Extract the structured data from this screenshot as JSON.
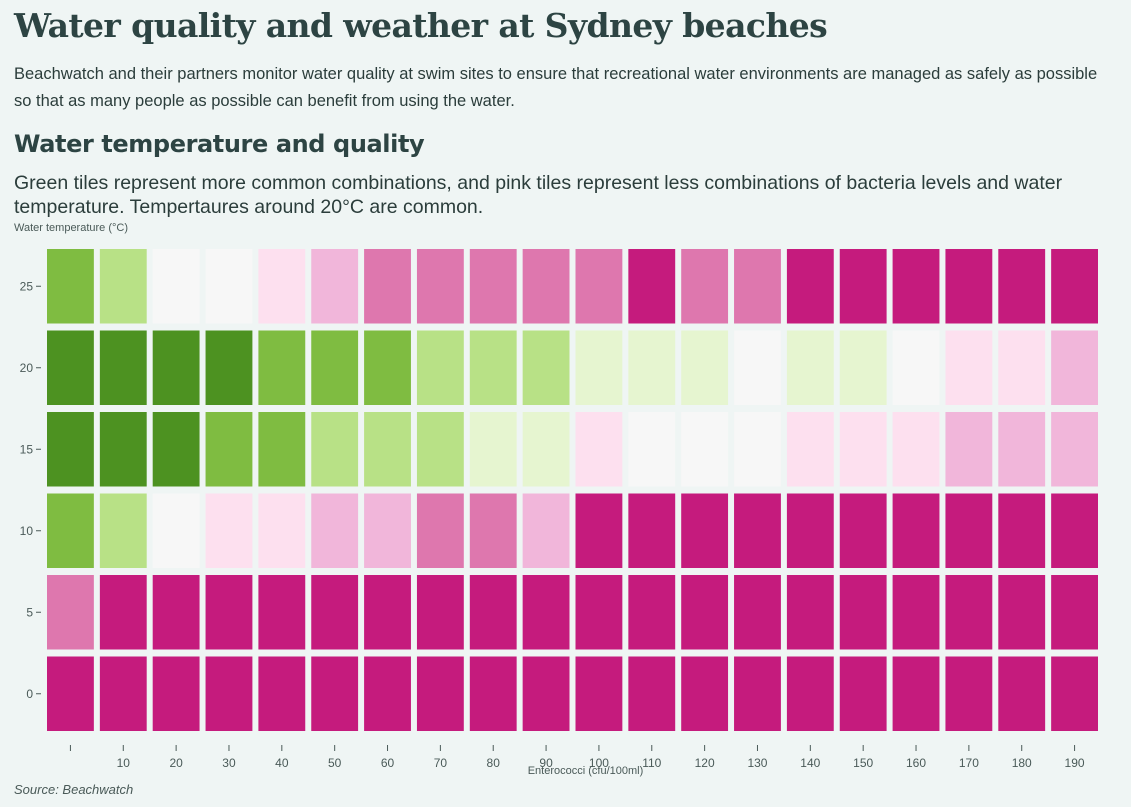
{
  "title": "Water quality and weather at Sydney beaches",
  "intro": "Beachwatch and their partners monitor water quality at swim sites to ensure that recreational water environments are managed as safely as possible so that as many people as possible can benefit from using the water.",
  "section_title": "Water temperature and quality",
  "subtitle": "Green tiles represent more common combinations, and pink tiles represent less combinations of bacteria levels and water temperature. Tempertaures around 20°C are common.",
  "source": "Source: Beachwatch",
  "colors": {
    "0": "#4d9221",
    "1": "#7fbc41",
    "2": "#b8e186",
    "3": "#e6f5d0",
    "4": "#f7f7f7",
    "5": "#fde0ef",
    "6": "#f1b6da",
    "7": "#de77ae",
    "8": "#c51b7d"
  },
  "chart_data": {
    "type": "heatmap",
    "xlabel": "Enterococci (cfu/100ml)",
    "ylabel": "Water temperature (°C)",
    "x": [
      0,
      10,
      20,
      30,
      40,
      50,
      60,
      70,
      80,
      90,
      100,
      110,
      120,
      130,
      140,
      150,
      160,
      170,
      180,
      190
    ],
    "x_tick_labels": [
      "",
      "10",
      "20",
      "30",
      "40",
      "50",
      "60",
      "70",
      "80",
      "90",
      "100",
      "110",
      "120",
      "130",
      "140",
      "150",
      "160",
      "170",
      "180",
      "190"
    ],
    "y": [
      25,
      20,
      15,
      10,
      5,
      0
    ],
    "y_tick_labels": [
      "25",
      "20",
      "15",
      "10",
      "5",
      "0"
    ],
    "color_levels": [
      [
        1,
        2,
        4,
        4,
        5,
        6,
        7,
        7,
        7,
        7,
        7,
        8,
        7,
        7,
        8,
        8,
        8,
        8,
        8,
        8
      ],
      [
        0,
        0,
        0,
        0,
        1,
        1,
        1,
        2,
        2,
        2,
        3,
        3,
        3,
        4,
        3,
        3,
        4,
        5,
        5,
        6
      ],
      [
        0,
        0,
        0,
        1,
        1,
        2,
        2,
        2,
        3,
        3,
        5,
        4,
        4,
        4,
        5,
        5,
        5,
        6,
        6,
        6
      ],
      [
        1,
        2,
        4,
        5,
        5,
        6,
        6,
        7,
        7,
        6,
        8,
        8,
        8,
        8,
        8,
        8,
        8,
        8,
        8,
        8
      ],
      [
        7,
        8,
        8,
        8,
        8,
        8,
        8,
        8,
        8,
        8,
        8,
        8,
        8,
        8,
        8,
        8,
        8,
        8,
        8,
        8
      ],
      [
        8,
        8,
        8,
        8,
        8,
        8,
        8,
        8,
        8,
        8,
        8,
        8,
        8,
        8,
        8,
        8,
        8,
        8,
        8,
        8
      ]
    ]
  }
}
